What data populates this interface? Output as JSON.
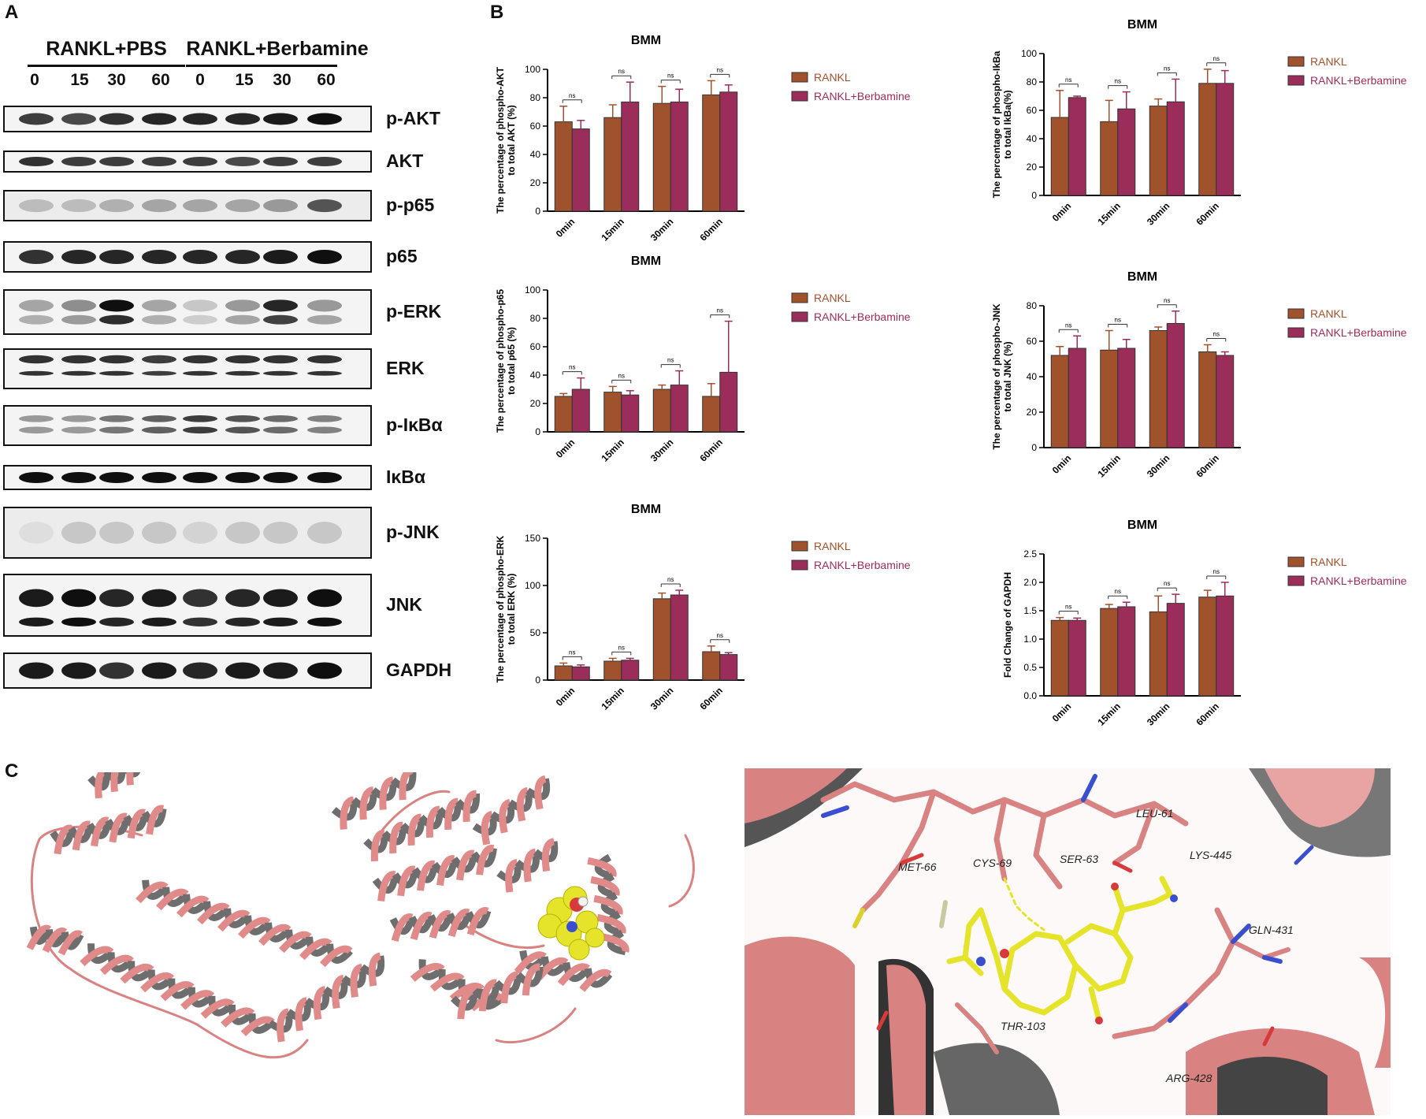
{
  "panels": {
    "a": "A",
    "b": "B",
    "c": "C"
  },
  "western": {
    "groups": [
      {
        "label": "RANKL+PBS",
        "times": [
          "0",
          "15",
          "30",
          "60"
        ]
      },
      {
        "label": "RANKL+Berbamine",
        "times": [
          "0",
          "15",
          "30",
          "60"
        ]
      }
    ],
    "blots": [
      "p-AKT",
      "AKT",
      "p-p65",
      "p65",
      "p-ERK",
      "ERK",
      "p-IκBα",
      "IκBα",
      "p-JNK",
      "JNK",
      "GAPDH"
    ]
  },
  "colors": {
    "rankl": "#A0522D",
    "berbamine": "#9B2D5A",
    "helix": "#E08A8A",
    "ligand": "#E8E830"
  },
  "chart_data": [
    {
      "type": "bar",
      "title": "BMM",
      "ylabel": "The percentage of phospho-AKT to total AKT (%)",
      "categories": [
        "0min",
        "15min",
        "30min",
        "60min"
      ],
      "ylim": [
        0,
        100
      ],
      "yticks": [
        "0",
        "20",
        "40",
        "60",
        "80",
        "100"
      ],
      "series": [
        {
          "name": "RANKL",
          "values": [
            63,
            66,
            76,
            82
          ],
          "errors": [
            11,
            9,
            12,
            10
          ]
        },
        {
          "name": "RANKL+Berbamine",
          "values": [
            58,
            77,
            77,
            84
          ],
          "errors": [
            6,
            14,
            9,
            5
          ]
        }
      ],
      "annotations": [
        "ns",
        "ns",
        "ns",
        "ns"
      ],
      "legend": "right"
    },
    {
      "type": "bar",
      "title": "BMM",
      "ylabel": "The percentage of phospho-IkBa to total IkBa(%)",
      "categories": [
        "0min",
        "15min",
        "30min",
        "60min"
      ],
      "ylim": [
        0,
        100
      ],
      "yticks": [
        "0",
        "20",
        "40",
        "60",
        "80",
        "100"
      ],
      "series": [
        {
          "name": "RANKL",
          "values": [
            55,
            52,
            63,
            79
          ],
          "errors": [
            19,
            15,
            5,
            10
          ]
        },
        {
          "name": "RANKL+Berbamine",
          "values": [
            69,
            61,
            66,
            79
          ],
          "errors": [
            1,
            12,
            16,
            9
          ]
        }
      ],
      "annotations": [
        "ns",
        "ns",
        "ns",
        "ns"
      ],
      "legend": "right"
    },
    {
      "type": "bar",
      "title": "BMM",
      "ylabel": "The percentage of phospho-p65 to total p65 (%)",
      "categories": [
        "0min",
        "15min",
        "30min",
        "60min"
      ],
      "ylim": [
        0,
        100
      ],
      "yticks": [
        "0",
        "20",
        "40",
        "60",
        "80",
        "100"
      ],
      "series": [
        {
          "name": "RANKL",
          "values": [
            25,
            28,
            30,
            25
          ],
          "errors": [
            2,
            4,
            3,
            9
          ]
        },
        {
          "name": "RANKL+Berbamine",
          "values": [
            30,
            26,
            33,
            42
          ],
          "errors": [
            8,
            3,
            10,
            36
          ]
        }
      ],
      "annotations": [
        "ns",
        "ns",
        "ns",
        "ns"
      ],
      "legend": "right"
    },
    {
      "type": "bar",
      "title": "BMM",
      "ylabel": "The percentage of phospho-JNK to total JNK (%)",
      "categories": [
        "0min",
        "15min",
        "30min",
        "60min"
      ],
      "ylim": [
        0,
        80
      ],
      "yticks": [
        "0",
        "20",
        "40",
        "60",
        "80"
      ],
      "series": [
        {
          "name": "RANKL",
          "values": [
            52,
            55,
            66,
            54
          ],
          "errors": [
            5,
            11,
            2,
            4
          ]
        },
        {
          "name": "RANKL+Berbamine",
          "values": [
            56,
            56,
            70,
            52
          ],
          "errors": [
            7,
            5,
            7,
            2
          ]
        }
      ],
      "annotations": [
        "ns",
        "ns",
        "ns",
        "ns"
      ],
      "legend": "right"
    },
    {
      "type": "bar",
      "title": "BMM",
      "ylabel": "The percentage of phospho-ERK to total ERK (%)",
      "categories": [
        "0min",
        "15min",
        "30min",
        "60min"
      ],
      "ylim": [
        0,
        150
      ],
      "yticks": [
        "0",
        "50",
        "100",
        "150"
      ],
      "series": [
        {
          "name": "RANKL",
          "values": [
            15,
            20,
            86,
            30
          ],
          "errors": [
            3,
            3,
            6,
            6
          ]
        },
        {
          "name": "RANKL+Berbamine",
          "values": [
            14,
            21,
            90,
            27
          ],
          "errors": [
            2,
            2,
            5,
            2
          ]
        }
      ],
      "annotations": [
        "ns",
        "ns",
        "ns",
        "ns"
      ],
      "legend": "right"
    },
    {
      "type": "bar",
      "title": "BMM",
      "ylabel": "Fold Change of GAPDH",
      "categories": [
        "0min",
        "15min",
        "30min",
        "60min"
      ],
      "ylim": [
        0,
        2.5
      ],
      "yticks": [
        "0.0",
        "0.5",
        "1.0",
        "1.5",
        "2.0",
        "2.5"
      ],
      "series": [
        {
          "name": "RANKL",
          "values": [
            1.33,
            1.54,
            1.48,
            1.74
          ],
          "errors": [
            0.05,
            0.07,
            0.28,
            0.12
          ]
        },
        {
          "name": "RANKL+Berbamine",
          "values": [
            1.33,
            1.57,
            1.63,
            1.76
          ],
          "errors": [
            0.04,
            0.08,
            0.16,
            0.24
          ]
        }
      ],
      "annotations": [
        "ns",
        "ns",
        "ns",
        "ns"
      ],
      "legend": "right"
    }
  ],
  "docking": {
    "residues": [
      "LEU-61",
      "MET-66",
      "CYS-69",
      "SER-63",
      "LYS-445",
      "GLN-431",
      "THR-103",
      "ARG-428"
    ]
  }
}
